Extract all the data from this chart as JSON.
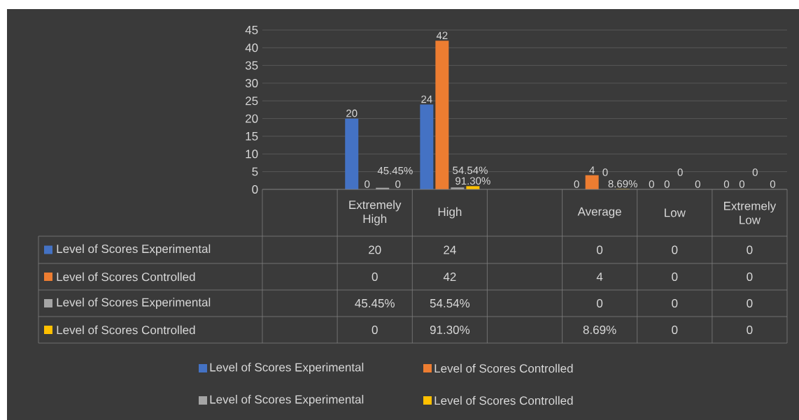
{
  "chart_data": {
    "type": "bar",
    "categories": [
      null,
      "Extremely High",
      "High",
      null,
      "Average",
      "Low",
      "Extremely Low"
    ],
    "series": [
      {
        "name": "Level  of Scores Experimental",
        "color": "#4472c4",
        "values": [
          null,
          20,
          24,
          null,
          0,
          0,
          0
        ],
        "value_labels": [
          null,
          "20",
          "24",
          null,
          "0",
          "0",
          "0"
        ]
      },
      {
        "name": "Level  of Scores Controlled",
        "color": "#ed7d31",
        "values": [
          null,
          0,
          42,
          null,
          4,
          0,
          0
        ],
        "value_labels": [
          null,
          "0",
          "42",
          null,
          "4",
          "0",
          "0"
        ]
      },
      {
        "name": "Level  of Scores Experimental",
        "color": "#a5a5a5",
        "values": [
          null,
          0.4545,
          0.5454,
          null,
          0,
          0,
          0
        ],
        "value_labels": [
          null,
          "45.45%",
          "54.54%",
          null,
          "0",
          "0",
          "0"
        ]
      },
      {
        "name": "Level  of Scores Controlled",
        "color": "#ffc000",
        "values": [
          null,
          0,
          0.913,
          null,
          0.0869,
          0,
          0
        ],
        "value_labels": [
          null,
          "0",
          "91.30%",
          null,
          "8.69%",
          "0",
          "0"
        ]
      }
    ],
    "ylim": [
      0,
      45
    ],
    "yticks": [
      0,
      5,
      10,
      15,
      20,
      25,
      30,
      35,
      40,
      45
    ],
    "grid": "y",
    "legend": "bottom"
  }
}
